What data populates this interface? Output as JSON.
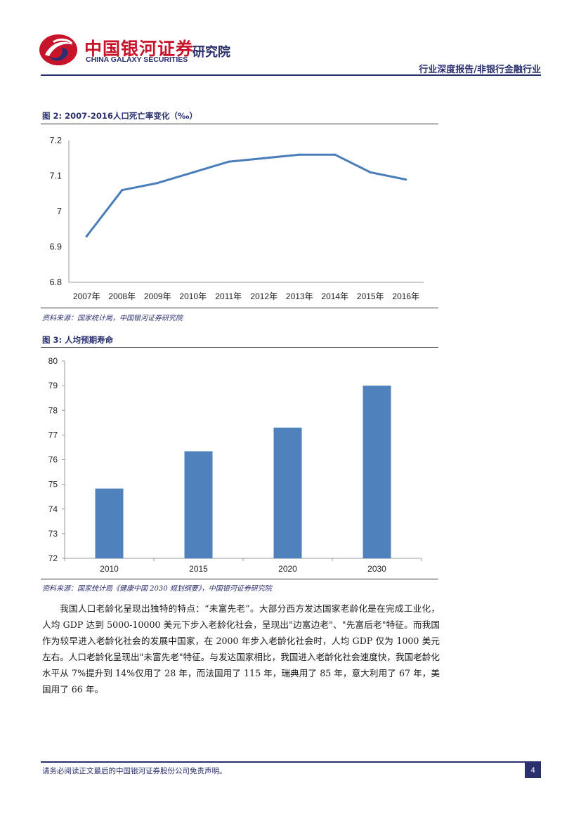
{
  "header": {
    "brand_cn": "中国银河证券",
    "brand_en": "CHINA GALAXY SECURITIES",
    "institute": "研究院",
    "report_type": "行业深度报告/非银行金融行业"
  },
  "figures": [
    {
      "title": "图 2: 2007-2016人口死亡率变化（‰）",
      "source": "资料来源：国家统计局，中国银河证券研究院"
    },
    {
      "title": "图 3: 人均预期寿命",
      "source": "资料来源：国家统计局《健康中国 2030 规划纲要》，中国银河证券研究院"
    }
  ],
  "chart_data": [
    {
      "type": "line",
      "categories": [
        "2007年",
        "2008年",
        "2009年",
        "2010年",
        "2011年",
        "2012年",
        "2013年",
        "2014年",
        "2015年",
        "2016年"
      ],
      "values": [
        6.93,
        7.06,
        7.08,
        7.11,
        7.14,
        7.15,
        7.16,
        7.16,
        7.11,
        7.09
      ],
      "yticks": [
        "7.2",
        "7.1",
        "7",
        "6.9",
        "6.8"
      ],
      "ylim": [
        6.8,
        7.2
      ],
      "grid": false,
      "color": "#4a7ebb"
    },
    {
      "type": "bar",
      "categories": [
        "2010",
        "2015",
        "2020",
        "2030"
      ],
      "values": [
        74.83,
        76.34,
        77.3,
        79.0
      ],
      "yticks": [
        "80",
        "79",
        "78",
        "77",
        "76",
        "75",
        "74",
        "73",
        "72"
      ],
      "ylim": [
        72,
        80
      ],
      "grid": false,
      "color": "#4f81bd"
    }
  ],
  "body": {
    "paragraph": "我国人口老龄化呈现出独特的特点：“未富先老”。大部分西方发达国家老龄化是在完成工业化，人均 GDP 达到 5000-10000 美元下步入老龄化社会，呈现出\"边富边老\"、\"先富后老\"特征。而我国作为较早进入老龄化社会的发展中国家，在 2000 年步入老龄化社会时，人均 GDP 仅为 1000 美元左右。人口老龄化呈现出\"未富先老\"特征。与发达国家相比，我国进入老龄化社会速度快，我国老龄化水平从 7%提升到 14%仅用了 28 年，而法国用了 115 年，瑞典用了 85 年，意大利用了 67 年，美国用了 66 年。"
  },
  "footer": {
    "disclaimer": "请务必阅读正文最后的中国银河证券股份公司免责声明。",
    "page_number": "4"
  }
}
